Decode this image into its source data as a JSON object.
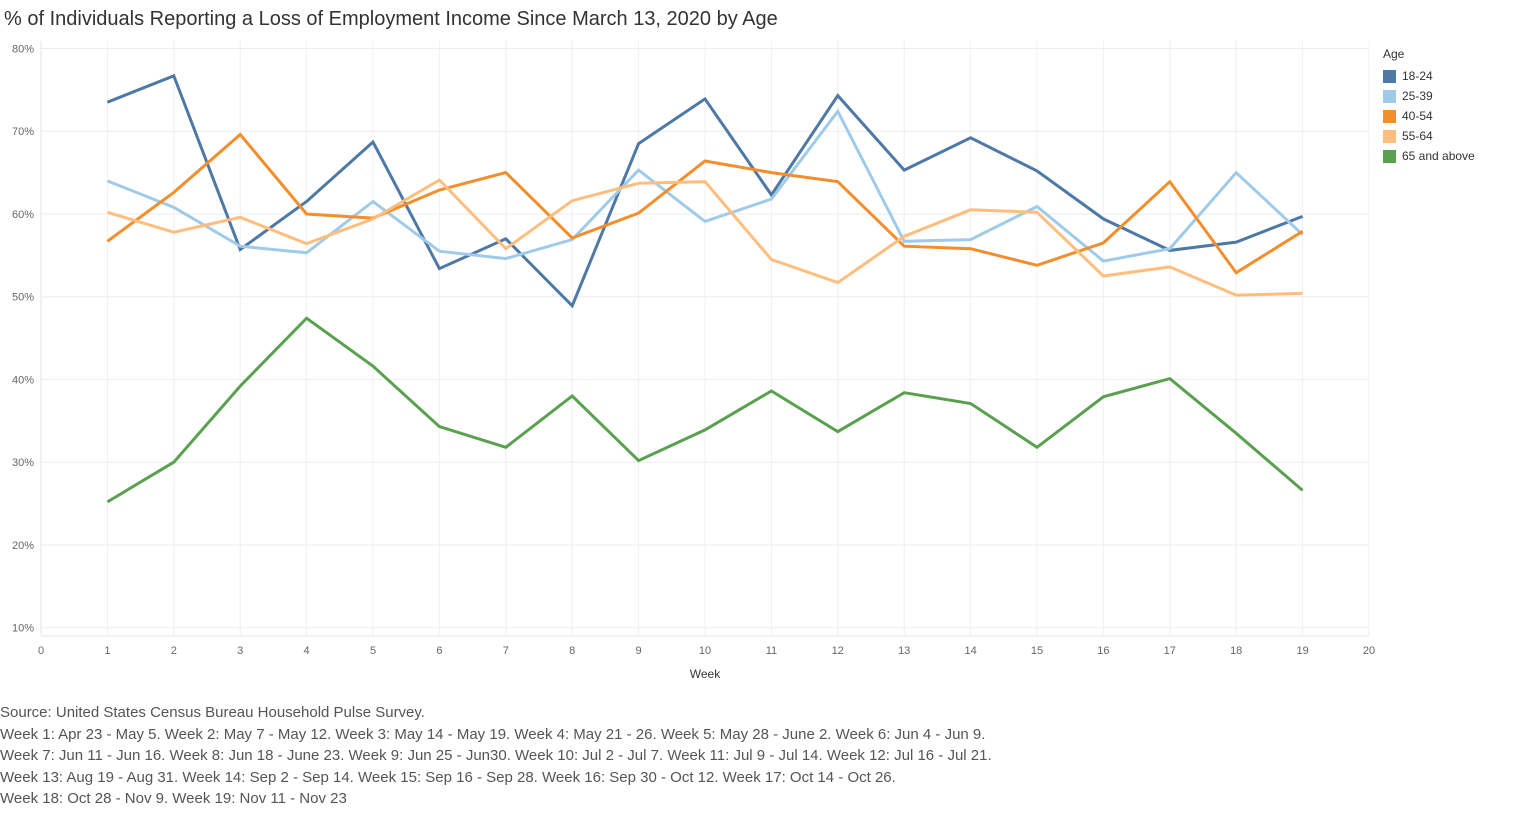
{
  "title": "% of Individuals Reporting a Loss of Employment Income Since March 13, 2020 by Age",
  "legend": {
    "title": "Age",
    "placement": "right"
  },
  "chart_data": {
    "type": "line",
    "title": "% of Individuals Reporting a Loss of Employment Income Since March 13, 2020 by Age",
    "xlabel": "Week",
    "ylabel": "",
    "xlim": [
      0,
      20
    ],
    "ylim": [
      10,
      80
    ],
    "x_ticks": [
      0,
      1,
      2,
      3,
      4,
      5,
      6,
      7,
      8,
      9,
      10,
      11,
      12,
      13,
      14,
      15,
      16,
      17,
      18,
      19,
      20
    ],
    "y_ticks": [
      10,
      20,
      30,
      40,
      50,
      60,
      70,
      80
    ],
    "y_tick_labels": [
      "10%",
      "20%",
      "30%",
      "40%",
      "50%",
      "60%",
      "70%",
      "80%"
    ],
    "grid": true,
    "x": [
      1,
      2,
      3,
      4,
      5,
      6,
      7,
      8,
      9,
      10,
      11,
      12,
      13,
      14,
      15,
      16,
      17,
      18,
      19
    ],
    "series": [
      {
        "name": "18-24",
        "color": "#4e79a7",
        "values": [
          73.5,
          76.7,
          55.7,
          61.5,
          68.7,
          53.4,
          57.0,
          48.9,
          68.5,
          73.9,
          62.3,
          74.3,
          65.3,
          69.2,
          65.2,
          59.4,
          55.6,
          56.6,
          59.7
        ]
      },
      {
        "name": "25-39",
        "color": "#a0cbe8",
        "values": [
          64.0,
          60.8,
          56.1,
          55.3,
          61.5,
          55.5,
          54.6,
          56.9,
          65.3,
          59.1,
          61.8,
          72.4,
          56.7,
          56.9,
          60.9,
          54.3,
          55.8,
          65.0,
          57.5
        ]
      },
      {
        "name": "40-54",
        "color": "#f28e2b",
        "values": [
          56.7,
          62.6,
          69.6,
          60.0,
          59.5,
          62.9,
          65.0,
          57.1,
          60.1,
          66.4,
          65.0,
          63.9,
          56.1,
          55.8,
          53.8,
          56.5,
          63.9,
          52.9,
          57.9
        ]
      },
      {
        "name": "55-64",
        "color": "#ffbe7d",
        "values": [
          60.2,
          57.8,
          59.6,
          56.4,
          59.4,
          64.1,
          55.8,
          61.6,
          63.7,
          63.9,
          54.5,
          51.7,
          57.3,
          60.5,
          60.2,
          52.5,
          53.6,
          50.2,
          50.4
        ]
      },
      {
        "name": "65 and above",
        "color": "#59a14f",
        "values": [
          25.2,
          30.0,
          39.2,
          47.4,
          41.6,
          34.3,
          31.8,
          38.0,
          30.2,
          33.9,
          38.6,
          33.7,
          38.4,
          37.1,
          31.8,
          37.9,
          40.1,
          33.5,
          26.6
        ]
      }
    ]
  },
  "notes": [
    "Source: United States Census Bureau Household Pulse Survey.",
    "Week 1: Apr 23 - May 5.  Week 2: May 7 - May 12.  Week 3: May 14 - May 19.  Week 4: May 21 - 26.  Week 5: May 28 - June 2.  Week 6: Jun 4 - Jun 9.",
    "Week 7: Jun 11 - Jun 16.  Week 8: Jun 18  - June 23.  Week 9: Jun 25 - Jun30.  Week 10: Jul 2 - Jul 7.  Week 11: Jul 9 - Jul 14.  Week 12: Jul 16 - Jul 21.",
    "Week 13: Aug 19  - Aug 31.  Week 14: Sep 2 - Sep 14.  Week 15: Sep 16 - Sep 28.  Week  16: Sep 30 - Oct 12.  Week 17: Oct 14 - Oct 26.",
    "Week 18: Oct 28 - Nov 9.  Week 19: Nov 11 - Nov 23"
  ]
}
